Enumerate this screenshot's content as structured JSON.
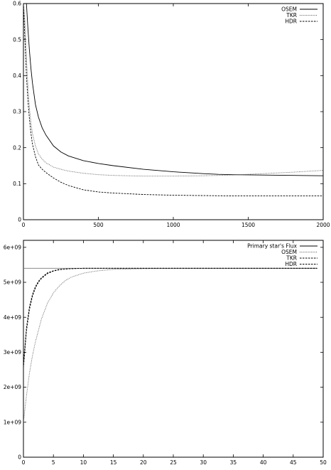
{
  "chart_data": [
    {
      "type": "line",
      "xlim": [
        0,
        2000
      ],
      "ylim": [
        0,
        0.6
      ],
      "xticks": [
        "0",
        "500",
        "1000",
        "1500",
        "2000"
      ],
      "yticks": [
        "0",
        "0.1",
        "0.2",
        "0.3",
        "0.4",
        "0.5",
        "0.6"
      ],
      "legend_position": "top-right",
      "grid": false,
      "series": [
        {
          "name": "OSEM",
          "style": "solid",
          "x": [
            0,
            10,
            20,
            30,
            40,
            50,
            60,
            80,
            100,
            125,
            150,
            200,
            250,
            300,
            400,
            500,
            600,
            800,
            1000,
            1200,
            1300,
            1400,
            1600,
            1800,
            2000
          ],
          "y": [
            0.6,
            0.6,
            0.6,
            0.53,
            0.47,
            0.42,
            0.38,
            0.32,
            0.285,
            0.255,
            0.235,
            0.205,
            0.188,
            0.177,
            0.164,
            0.156,
            0.15,
            0.14,
            0.133,
            0.128,
            0.126,
            0.125,
            0.124,
            0.123,
            0.122
          ]
        },
        {
          "name": "TKR",
          "style": "dotted",
          "x": [
            0,
            10,
            20,
            30,
            40,
            50,
            60,
            80,
            100,
            125,
            150,
            200,
            250,
            300,
            400,
            500,
            600,
            800,
            1000,
            1200,
            1400,
            1600,
            1800,
            2000
          ],
          "y": [
            0.6,
            0.55,
            0.45,
            0.37,
            0.31,
            0.27,
            0.24,
            0.205,
            0.183,
            0.168,
            0.158,
            0.146,
            0.14,
            0.135,
            0.129,
            0.125,
            0.123,
            0.121,
            0.121,
            0.122,
            0.124,
            0.128,
            0.132,
            0.137
          ]
        },
        {
          "name": "HDR",
          "style": "dashed",
          "x": [
            0,
            10,
            20,
            30,
            40,
            50,
            60,
            80,
            100,
            125,
            150,
            200,
            250,
            300,
            400,
            500,
            600,
            800,
            1000,
            1200,
            1400,
            1600,
            1800,
            2000
          ],
          "y": [
            0.6,
            0.5,
            0.4,
            0.33,
            0.28,
            0.24,
            0.21,
            0.175,
            0.152,
            0.14,
            0.131,
            0.116,
            0.104,
            0.095,
            0.083,
            0.077,
            0.074,
            0.07,
            0.068,
            0.067,
            0.066,
            0.066,
            0.066,
            0.066
          ]
        }
      ]
    },
    {
      "type": "line",
      "xlim": [
        0,
        50
      ],
      "ylim": [
        0,
        6200000000.0
      ],
      "xticks": [
        "0",
        "5",
        "10",
        "15",
        "20",
        "25",
        "30",
        "35",
        "40",
        "45",
        "50"
      ],
      "yticks": [
        {
          "value": 0,
          "label": "0"
        },
        {
          "value": 1000000000.0,
          "label": "1e+09"
        },
        {
          "value": 2000000000.0,
          "label": "2e+09"
        },
        {
          "value": 3000000000.0,
          "label": "3e+09"
        },
        {
          "value": 4000000000.0,
          "label": "4e+09"
        },
        {
          "value": 5000000000.0,
          "label": "5e+09"
        },
        {
          "value": 6000000000.0,
          "label": "6e+09"
        }
      ],
      "legend_position": "top-right",
      "grid": false,
      "series": [
        {
          "name": "Primary star's Flux",
          "style": "solid",
          "x": [
            0,
            49
          ],
          "y": [
            5400000000.0,
            5400000000.0
          ]
        },
        {
          "name": "OSEM",
          "style": "dotted",
          "x": [
            0,
            0.5,
            1,
            1.5,
            2,
            3,
            4,
            5,
            6,
            7,
            8,
            10,
            12,
            15,
            20,
            25,
            30,
            35,
            40,
            45,
            49
          ],
          "y": [
            1000000000.0,
            1750000000.0,
            2400000000.0,
            2900000000.0,
            3300000000.0,
            3950000000.0,
            4400000000.0,
            4700000000.0,
            4900000000.0,
            5050000000.0,
            5150000000.0,
            5260000000.0,
            5320000000.0,
            5370000000.0,
            5390000000.0,
            5400000000.0,
            5400000000.0,
            5400000000.0,
            5400000000.0,
            5400000000.0,
            5400000000.0
          ]
        },
        {
          "name": "TKR",
          "style": "dashed",
          "x": [
            0,
            0.5,
            1,
            1.5,
            2,
            2.5,
            3,
            4,
            5,
            6,
            7,
            8,
            10,
            15,
            20,
            30,
            40,
            49
          ],
          "y": [
            2650000000.0,
            3700000000.0,
            4300000000.0,
            4650000000.0,
            4880000000.0,
            5030000000.0,
            5130000000.0,
            5270000000.0,
            5330000000.0,
            5370000000.0,
            5380000000.0,
            5390000000.0,
            5400000000.0,
            5400000000.0,
            5400000000.0,
            5400000000.0,
            5400000000.0,
            5400000000.0
          ]
        },
        {
          "name": "HDR",
          "style": "dashed",
          "x": [
            0,
            0.5,
            1,
            1.5,
            2,
            2.5,
            3,
            4,
            5,
            6,
            7,
            8,
            10,
            15,
            20,
            30,
            40,
            49
          ],
          "y": [
            2550000000.0,
            3600000000.0,
            4220000000.0,
            4600000000.0,
            4840000000.0,
            5000000000.0,
            5110000000.0,
            5250000000.0,
            5320000000.0,
            5360000000.0,
            5380000000.0,
            5390000000.0,
            5400000000.0,
            5400000000.0,
            5400000000.0,
            5400000000.0,
            5400000000.0,
            5400000000.0
          ]
        }
      ]
    }
  ]
}
